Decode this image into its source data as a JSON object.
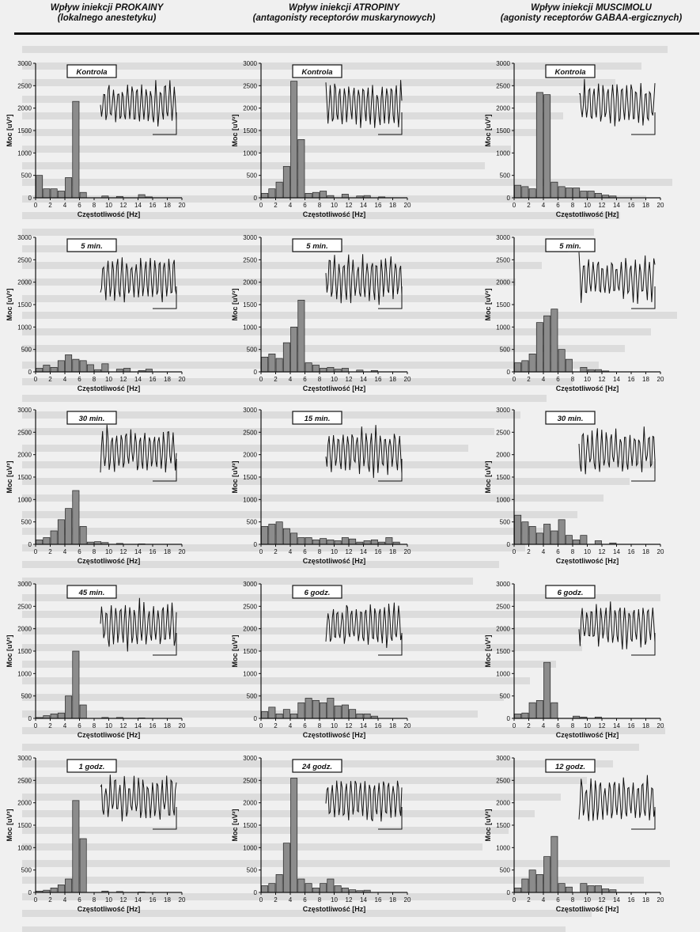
{
  "headers": [
    {
      "title": "Wpływ iniekcji PROKAINY",
      "subtitle": "(lokalnego anestetyku)"
    },
    {
      "title": "Wpływ iniekcji ATROPINY",
      "subtitle": "(antagonisty receptorów muskarynowych)"
    },
    {
      "title": "Wpływ iniekcji MUSCIMOLU",
      "subtitle": "(agonisty receptorów GABAA-ergicznych)"
    }
  ],
  "axis": {
    "ylabel": "Moc [uV²]",
    "xlabel": "Częstotliwość [Hz]",
    "yticks": [
      0,
      500,
      1000,
      1500,
      2000,
      2500,
      3000
    ],
    "xticks": [
      0,
      2,
      4,
      6,
      8,
      10,
      12,
      14,
      16,
      18,
      20
    ]
  },
  "colors": {
    "bar_fill": "#8c8c8c",
    "bar_stroke": "#222222",
    "axis": "#111111",
    "background": "#f0f0f0"
  },
  "chart_data": [
    {
      "type": "bar",
      "column": 0,
      "label": "Kontrola",
      "ylim": [
        0,
        3000
      ],
      "xlim": [
        0,
        20
      ],
      "values": [
        500,
        200,
        200,
        150,
        450,
        2150,
        120,
        0,
        0,
        40,
        0,
        30,
        0,
        0,
        70,
        20,
        0,
        0,
        0,
        0
      ]
    },
    {
      "type": "bar",
      "column": 0,
      "label": "5 min.",
      "ylim": [
        0,
        3000
      ],
      "xlim": [
        0,
        20
      ],
      "values": [
        80,
        150,
        100,
        250,
        380,
        280,
        250,
        160,
        50,
        180,
        0,
        60,
        80,
        0,
        30,
        60,
        0,
        0,
        0,
        0
      ]
    },
    {
      "type": "bar",
      "column": 0,
      "label": "30 min.",
      "ylim": [
        0,
        3000
      ],
      "xlim": [
        0,
        20
      ],
      "values": [
        100,
        150,
        300,
        550,
        800,
        1200,
        400,
        50,
        60,
        40,
        0,
        20,
        0,
        0,
        10,
        0,
        0,
        0,
        0,
        0
      ]
    },
    {
      "type": "bar",
      "column": 0,
      "label": "45 min.",
      "ylim": [
        0,
        3000
      ],
      "xlim": [
        0,
        20
      ],
      "values": [
        20,
        60,
        100,
        120,
        500,
        1500,
        300,
        0,
        0,
        20,
        0,
        20,
        0,
        0,
        10,
        0,
        0,
        0,
        0,
        0
      ]
    },
    {
      "type": "bar",
      "column": 0,
      "label": "1 godz.",
      "ylim": [
        0,
        3000
      ],
      "xlim": [
        0,
        20
      ],
      "values": [
        30,
        50,
        100,
        170,
        300,
        2050,
        1200,
        0,
        0,
        30,
        0,
        20,
        0,
        0,
        10,
        0,
        0,
        0,
        0,
        0
      ]
    },
    {
      "type": "bar",
      "column": 1,
      "label": "Kontrola",
      "ylim": [
        0,
        3000
      ],
      "xlim": [
        0,
        20
      ],
      "values": [
        100,
        200,
        350,
        700,
        2600,
        1300,
        100,
        120,
        150,
        50,
        0,
        80,
        0,
        40,
        50,
        0,
        20,
        0,
        0,
        0
      ]
    },
    {
      "type": "bar",
      "column": 1,
      "label": "5 min.",
      "ylim": [
        0,
        3000
      ],
      "xlim": [
        0,
        20
      ],
      "values": [
        330,
        400,
        300,
        650,
        1000,
        1600,
        200,
        150,
        80,
        100,
        60,
        80,
        0,
        40,
        0,
        30,
        0,
        0,
        0,
        0
      ]
    },
    {
      "type": "bar",
      "column": 1,
      "label": "15 min.",
      "ylim": [
        0,
        3000
      ],
      "xlim": [
        0,
        20
      ],
      "values": [
        400,
        450,
        500,
        350,
        250,
        150,
        150,
        100,
        130,
        100,
        80,
        150,
        120,
        50,
        80,
        100,
        50,
        150,
        50,
        0
      ]
    },
    {
      "type": "bar",
      "column": 1,
      "label": "6 godz.",
      "ylim": [
        0,
        3000
      ],
      "xlim": [
        0,
        20
      ],
      "values": [
        150,
        250,
        100,
        200,
        100,
        350,
        450,
        400,
        350,
        450,
        280,
        300,
        200,
        100,
        100,
        50,
        0,
        0,
        0,
        0
      ]
    },
    {
      "type": "bar",
      "column": 1,
      "label": "24 godz.",
      "ylim": [
        0,
        3000
      ],
      "xlim": [
        0,
        20
      ],
      "values": [
        150,
        200,
        400,
        1100,
        2550,
        300,
        200,
        100,
        200,
        300,
        150,
        100,
        60,
        40,
        50,
        0,
        0,
        0,
        0,
        0
      ]
    },
    {
      "type": "bar",
      "column": 2,
      "label": "Kontrola",
      "ylim": [
        0,
        3000
      ],
      "xlim": [
        0,
        20
      ],
      "values": [
        280,
        250,
        200,
        2350,
        2300,
        350,
        250,
        220,
        220,
        150,
        150,
        100,
        60,
        40,
        0,
        0,
        0,
        0,
        0,
        0
      ]
    },
    {
      "type": "bar",
      "column": 2,
      "label": "5 min.",
      "ylim": [
        0,
        3000
      ],
      "xlim": [
        0,
        20
      ],
      "values": [
        200,
        250,
        400,
        1100,
        1250,
        1400,
        500,
        280,
        0,
        100,
        50,
        50,
        20,
        0,
        0,
        0,
        0,
        0,
        0,
        0
      ]
    },
    {
      "type": "bar",
      "column": 2,
      "label": "30 min.",
      "ylim": [
        0,
        3000
      ],
      "xlim": [
        0,
        20
      ],
      "values": [
        650,
        500,
        400,
        250,
        450,
        300,
        550,
        200,
        100,
        200,
        0,
        80,
        0,
        30,
        0,
        0,
        0,
        0,
        0,
        0
      ]
    },
    {
      "type": "bar",
      "column": 2,
      "label": "6 godz.",
      "ylim": [
        0,
        3000
      ],
      "xlim": [
        0,
        20
      ],
      "values": [
        100,
        120,
        350,
        400,
        1250,
        350,
        0,
        0,
        50,
        30,
        0,
        30,
        0,
        0,
        0,
        0,
        0,
        0,
        0,
        0
      ]
    },
    {
      "type": "bar",
      "column": 2,
      "label": "12 godz.",
      "ylim": [
        0,
        3000
      ],
      "xlim": [
        0,
        20
      ],
      "values": [
        100,
        300,
        500,
        400,
        800,
        1250,
        200,
        120,
        0,
        200,
        150,
        150,
        80,
        60,
        0,
        0,
        0,
        0,
        0,
        0
      ]
    }
  ]
}
